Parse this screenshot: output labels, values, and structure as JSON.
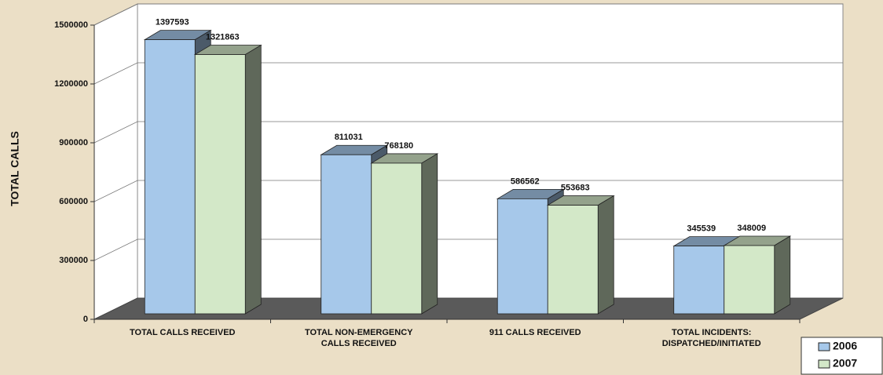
{
  "chart_data": {
    "type": "bar3d",
    "y_label": "TOTAL CALLS",
    "categories": [
      "TOTAL CALLS RECEIVED",
      "TOTAL NON-EMERGENCY\nCALLS RECEIVED",
      "911 CALLS RECEIVED",
      "TOTAL INCIDENTS:\nDISPATCHED/INITIATED"
    ],
    "series": [
      {
        "name": "2006",
        "color": "#a6c8ea",
        "values": [
          1397593,
          811031,
          586562,
          345539
        ]
      },
      {
        "name": "2007",
        "color": "#d3e8c8",
        "values": [
          1321863,
          768180,
          553683,
          348009
        ]
      }
    ],
    "ylim": [
      0,
      1500000
    ],
    "yticks": [
      0,
      300000,
      600000,
      900000,
      1200000,
      1500000
    ],
    "grid": true
  }
}
